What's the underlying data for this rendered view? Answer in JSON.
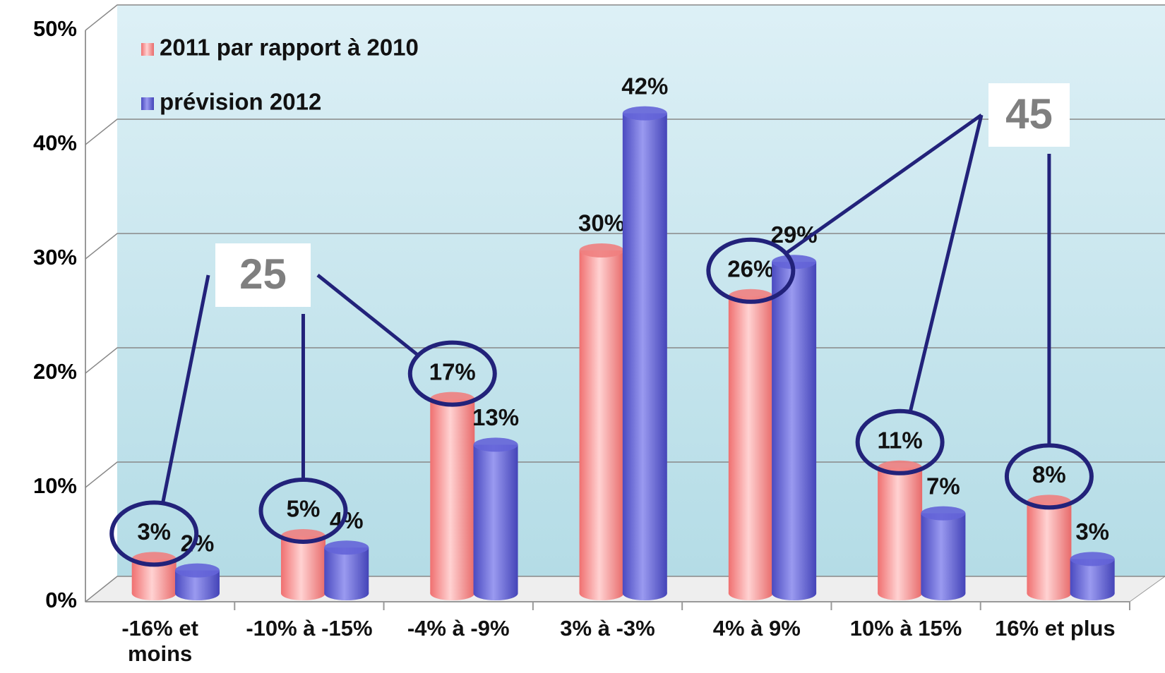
{
  "chart_data": {
    "type": "bar3d",
    "categories": [
      "-16% et moins",
      "-10% à -15%",
      "-4% à -9%",
      "3% à -3%",
      "4% à 9%",
      "10% à 15%",
      "16% et plus"
    ],
    "series": [
      {
        "name": "2011 par rapport à 2010",
        "color": "#f08080",
        "values": [
          3,
          5,
          17,
          30,
          26,
          11,
          8
        ],
        "value_labels": [
          "3%",
          "5%",
          "17%",
          "30%",
          "26%",
          "11%",
          "8%"
        ]
      },
      {
        "name": "prévision 2012",
        "color": "#6464d8",
        "values": [
          2,
          4,
          13,
          42,
          29,
          7,
          3
        ],
        "value_labels": [
          "2%",
          "4%",
          "13%",
          "42%",
          "29%",
          "7%",
          "3%"
        ]
      }
    ],
    "ylim": [
      0,
      50
    ],
    "yticks": [
      {
        "value": 0,
        "label": "0%"
      },
      {
        "value": 10,
        "label": "10%"
      },
      {
        "value": 20,
        "label": "20%"
      },
      {
        "value": 30,
        "label": "30%"
      },
      {
        "value": 40,
        "label": "40%"
      },
      {
        "value": 50,
        "label": "50%"
      }
    ],
    "grid": true,
    "legend": "upper left",
    "annotations": [
      {
        "text": "25",
        "targets": [
          0,
          1,
          2
        ]
      },
      {
        "text": "45",
        "targets": [
          4,
          5,
          6
        ]
      }
    ]
  }
}
